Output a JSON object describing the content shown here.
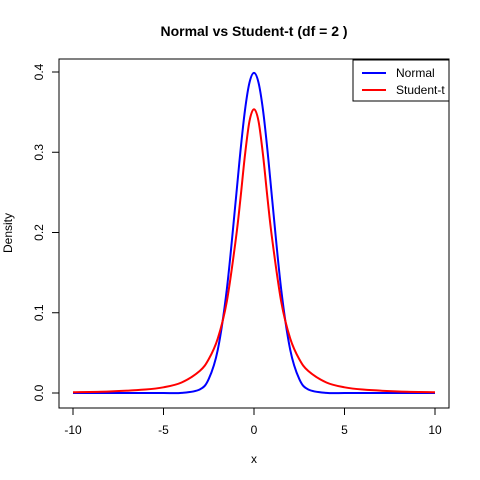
{
  "chart_data": {
    "type": "line",
    "title": "Normal vs Student-t (df = 2 )",
    "xlabel": "x",
    "ylabel": "Density",
    "xlim": [
      -10,
      10
    ],
    "ylim": [
      0,
      0.4
    ],
    "x_ticks": [
      -10,
      -5,
      0,
      5,
      10
    ],
    "y_ticks": [
      0.0,
      0.1,
      0.2,
      0.3,
      0.4
    ],
    "x_tick_labels": [
      "-10",
      "-5",
      "0",
      "5",
      "10"
    ],
    "y_tick_labels": [
      "0.0",
      "0.1",
      "0.2",
      "0.3",
      "0.4"
    ],
    "grid": false,
    "legend_position": "top-right",
    "x": [
      -10,
      -8,
      -6,
      -5,
      -4,
      -3,
      -2.5,
      -2,
      -1.5,
      -1,
      -0.75,
      -0.5,
      -0.25,
      0,
      0.25,
      0.5,
      0.75,
      1,
      1.5,
      2,
      2.5,
      3,
      4,
      5,
      6,
      8,
      10
    ],
    "series": [
      {
        "name": "Normal",
        "color": "#0000FF",
        "values": [
          0.0,
          0.0,
          0.0,
          0.0,
          0.0001,
          0.0044,
          0.0175,
          0.054,
          0.1295,
          0.242,
          0.3011,
          0.3521,
          0.3867,
          0.3989,
          0.3867,
          0.3521,
          0.3011,
          0.242,
          0.1295,
          0.054,
          0.0175,
          0.0044,
          0.0001,
          0.0,
          0.0,
          0.0,
          0.0
        ]
      },
      {
        "name": "Student-t",
        "color": "#FF0000",
        "values": [
          0.001,
          0.0019,
          0.0043,
          0.0071,
          0.0131,
          0.0274,
          0.0422,
          0.068,
          0.1143,
          0.1925,
          0.2419,
          0.2962,
          0.3387,
          0.3536,
          0.3387,
          0.2962,
          0.2419,
          0.1925,
          0.1143,
          0.068,
          0.0422,
          0.0274,
          0.0131,
          0.0071,
          0.0043,
          0.0019,
          0.001
        ]
      }
    ]
  }
}
